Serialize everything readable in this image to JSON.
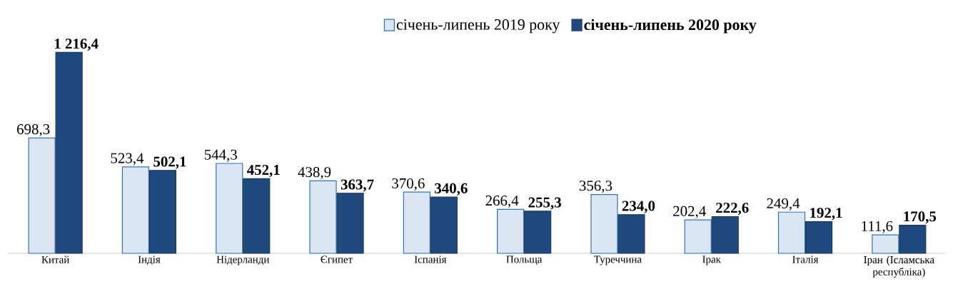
{
  "chart_data": {
    "type": "bar",
    "categories": [
      "Китай",
      "Індія",
      "Нідерланди",
      "Єгипет",
      "Іспанія",
      "Польща",
      "Туреччина",
      "Ірак",
      "Італія",
      "Іран (Ісламська республіка)"
    ],
    "series": [
      {
        "name": "січень-липень 2019 року",
        "color": "#dce6f2",
        "values": [
          698.3,
          523.4,
          544.3,
          438.9,
          370.6,
          266.4,
          356.3,
          202.4,
          249.4,
          111.6
        ],
        "value_labels": [
          "698,3",
          "523,4",
          "544,3",
          "438,9",
          "370,6",
          "266,4",
          "356,3",
          "202,4",
          "249,4",
          "111,6"
        ]
      },
      {
        "name": "січень-липень 2020 року",
        "color": "#1f497d",
        "values": [
          1216.4,
          502.1,
          452.1,
          363.7,
          340.6,
          255.3,
          234.0,
          222.6,
          192.1,
          170.5
        ],
        "value_labels": [
          "1 216,4",
          "502,1",
          "452,1",
          "363,7",
          "340,6",
          "255,3",
          "234,0",
          "222,6",
          "192,1",
          "170,5"
        ]
      }
    ],
    "legend": "top"
  }
}
